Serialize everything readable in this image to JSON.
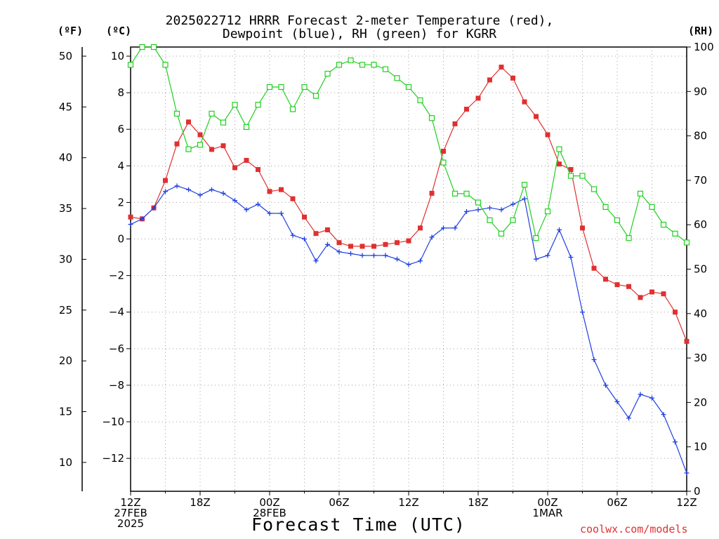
{
  "header": {
    "title_line1": "2025022712 HRRR Forecast 2-meter Temperature (red),",
    "title_line2": "Dewpoint (blue), RH (green) for KGRR"
  },
  "units": {
    "f": "(ºF)",
    "c": "(ºC)",
    "rh": "(RH)"
  },
  "footer": {
    "xlabel": "Forecast Time (UTC)",
    "credit": "coolwx.com/models"
  },
  "colors": {
    "temperature": "#e03030",
    "dewpoint": "#2040e0",
    "rh": "#20d020",
    "grid": "#a0a0a0"
  },
  "chart_data": {
    "type": "line",
    "title": "2025022712 HRRR Forecast 2-meter Temperature (red), Dewpoint (blue), RH (green) for KGRR",
    "xlabel": "Forecast Time (UTC)",
    "x_hours": [
      0,
      1,
      2,
      3,
      4,
      5,
      6,
      7,
      8,
      9,
      10,
      11,
      12,
      13,
      14,
      15,
      16,
      17,
      18,
      19,
      20,
      21,
      22,
      23,
      24,
      25,
      26,
      27,
      28,
      29,
      30,
      31,
      32,
      33,
      34,
      35,
      36,
      37,
      38,
      39,
      40,
      41,
      42,
      43,
      44,
      45,
      46,
      47,
      48
    ],
    "x_ticks": [
      {
        "hour": 0,
        "lines": [
          "12Z",
          "27FEB",
          "2025"
        ]
      },
      {
        "hour": 6,
        "lines": [
          "18Z"
        ]
      },
      {
        "hour": 12,
        "lines": [
          "00Z",
          "28FEB"
        ]
      },
      {
        "hour": 18,
        "lines": [
          "06Z"
        ]
      },
      {
        "hour": 24,
        "lines": [
          "12Z"
        ]
      },
      {
        "hour": 30,
        "lines": [
          "18Z"
        ]
      },
      {
        "hour": 36,
        "lines": [
          "00Z",
          "1MAR"
        ]
      },
      {
        "hour": 42,
        "lines": [
          "06Z"
        ]
      },
      {
        "hour": 48,
        "lines": [
          "12Z"
        ]
      }
    ],
    "xlim": [
      0,
      48
    ],
    "ylim_c": [
      -13.8,
      10.5
    ],
    "ylim_rh": [
      0,
      100
    ],
    "yticks_c": [
      10,
      8,
      6,
      4,
      2,
      0,
      -2,
      -4,
      -6,
      -8,
      -10,
      -12
    ],
    "yticks_f": [
      50,
      45,
      40,
      35,
      30,
      25,
      20,
      15,
      10
    ],
    "yticks_rh": [
      100,
      90,
      80,
      70,
      60,
      50,
      40,
      30,
      20,
      10,
      0
    ],
    "grid": true,
    "series": [
      {
        "name": "Temperature",
        "axis": "c",
        "values": [
          1.2,
          1.1,
          1.7,
          3.2,
          5.2,
          6.4,
          5.7,
          4.9,
          5.1,
          3.9,
          4.3,
          3.8,
          2.6,
          2.7,
          2.2,
          1.2,
          0.3,
          0.5,
          -0.2,
          -0.4,
          -0.4,
          -0.4,
          -0.3,
          -0.2,
          -0.1,
          0.6,
          2.5,
          4.8,
          6.3,
          7.1,
          7.7,
          8.7,
          9.4,
          8.8,
          7.5,
          6.7,
          5.7,
          4.1,
          3.8,
          0.6,
          -1.6,
          -2.2,
          -2.5,
          -2.6,
          -3.2,
          -2.9,
          -3.0,
          -4.0,
          -5.6
        ]
      },
      {
        "name": "Dewpoint",
        "axis": "c",
        "values": [
          0.8,
          1.1,
          1.7,
          2.6,
          2.9,
          2.7,
          2.4,
          2.7,
          2.5,
          2.1,
          1.6,
          1.9,
          1.4,
          1.4,
          0.2,
          0.0,
          -1.2,
          -0.3,
          -0.7,
          -0.8,
          -0.9,
          -0.9,
          -0.9,
          -1.1,
          -1.4,
          -1.2,
          0.1,
          0.6,
          0.6,
          1.5,
          1.6,
          1.7,
          1.6,
          1.9,
          2.2,
          -1.1,
          -0.9,
          0.5,
          -1.0,
          -4.0,
          -6.6,
          -8.0,
          -8.9,
          -9.8,
          -8.5,
          -8.7,
          -9.6,
          -11.1,
          -12.8
        ]
      },
      {
        "name": "RH",
        "axis": "rh",
        "values": [
          96,
          100,
          100,
          96,
          85,
          77,
          78,
          85,
          83,
          87,
          82,
          87,
          91,
          91,
          86,
          91,
          89,
          94,
          96,
          97,
          96,
          96,
          95,
          93,
          91,
          88,
          84,
          74,
          67,
          67,
          65,
          61,
          58,
          61,
          69,
          57,
          63,
          77,
          71,
          71,
          68,
          64,
          61,
          57,
          67,
          64,
          60,
          58,
          56
        ]
      }
    ]
  }
}
